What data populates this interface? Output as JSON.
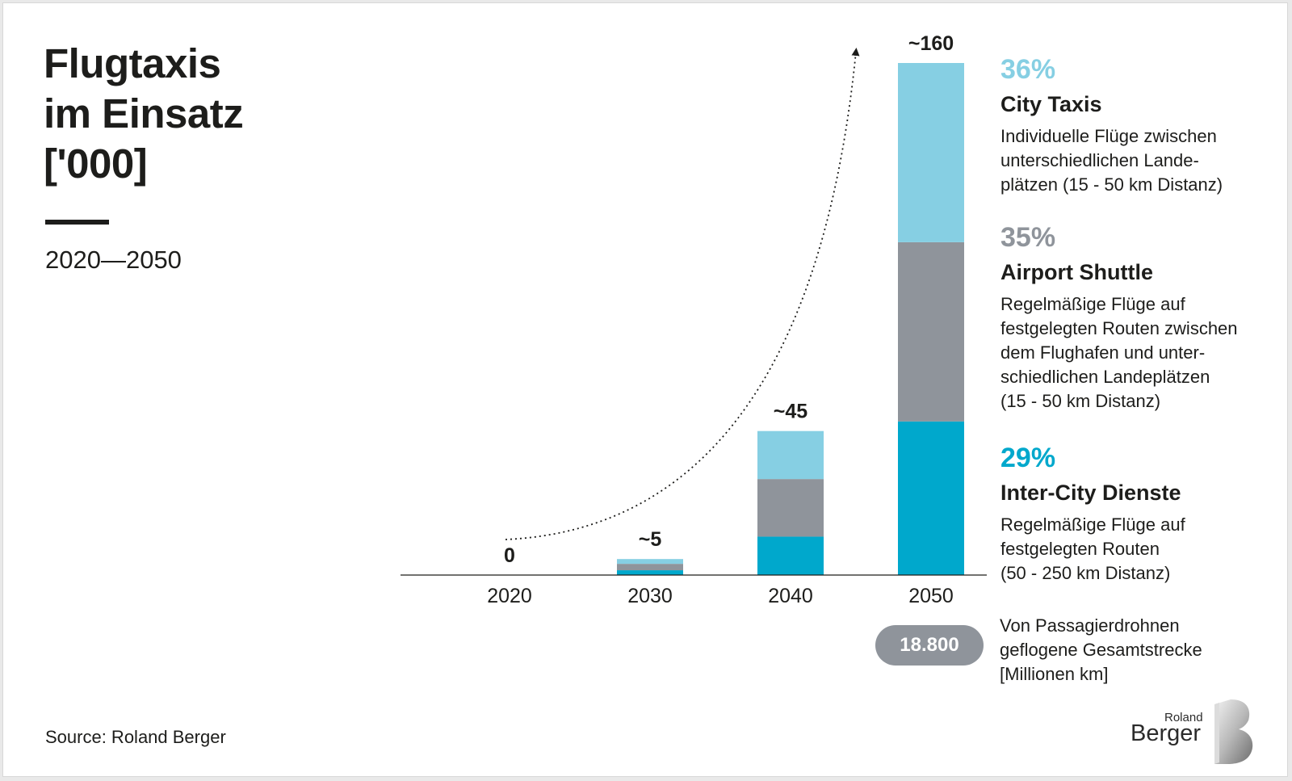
{
  "header": {
    "title_lines": [
      "Flugtaxis",
      "im Einsatz",
      "['000]"
    ],
    "subtitle": "2020—2050"
  },
  "source": "Source: Roland Berger",
  "chart_data": {
    "type": "bar",
    "stacked": true,
    "categories": [
      "2020",
      "2030",
      "2040",
      "2050"
    ],
    "totals": [
      0,
      5,
      45,
      160
    ],
    "total_labels": [
      "0",
      "~5",
      "~45",
      "~160"
    ],
    "series": [
      {
        "name": "Inter-City Dienste",
        "color": "#00a8cc",
        "values": [
          0,
          1.5,
          12,
          48
        ]
      },
      {
        "name": "Airport Shuttle",
        "color": "#8f949b",
        "values": [
          0,
          2,
          18,
          56
        ]
      },
      {
        "name": "City Taxis",
        "color": "#86cfe3",
        "values": [
          0,
          1.5,
          15,
          56
        ]
      }
    ],
    "ylim": [
      0,
      160
    ],
    "grid": false,
    "trend_arrow": true
  },
  "legend": [
    {
      "percent": "36%",
      "name": "City Taxis",
      "color": "#86cfe3",
      "description": [
        "Individuelle Flüge zwischen",
        "unterschiedlichen Lande-",
        "plätzen (15 - 50 km Distanz)"
      ]
    },
    {
      "percent": "35%",
      "name": "Airport Shuttle",
      "color": "#8f949b",
      "description": [
        "Regelmäßige Flüge auf",
        "festgelegten Routen zwischen",
        "dem Flughafen und unter-",
        "schiedlichen Landeplätzen",
        "(15 - 50 km Distanz)"
      ]
    },
    {
      "percent": "29%",
      "name": "Inter-City Dienste",
      "color": "#00a8cc",
      "description": [
        "Regelmäßige Flüge auf",
        "festgelegten Routen",
        "(50 - 250 km Distanz)"
      ]
    }
  ],
  "distance": {
    "value": "18.800",
    "description": [
      "Von Passagierdrohnen",
      "geflogene Gesamtstrecke",
      "[Millionen km]"
    ]
  },
  "logo": {
    "line1": "Roland",
    "line2": "Berger"
  }
}
